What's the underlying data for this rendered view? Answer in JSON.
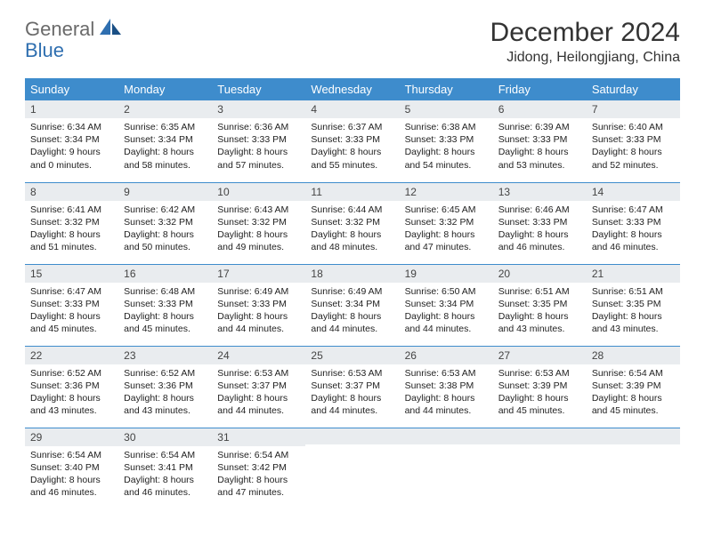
{
  "logo": {
    "part1": "General",
    "part2": "Blue"
  },
  "title": "December 2024",
  "location": "Jidong, Heilongjiang, China",
  "colors": {
    "header_bg": "#3e8ccc",
    "header_text": "#ffffff",
    "daynum_bg": "#e9ecef",
    "border": "#3e8ccc",
    "logo_gray": "#6a6a6a",
    "logo_blue": "#2f6fb0"
  },
  "weekdays": [
    "Sunday",
    "Monday",
    "Tuesday",
    "Wednesday",
    "Thursday",
    "Friday",
    "Saturday"
  ],
  "weeks": [
    [
      {
        "n": "1",
        "sr": "Sunrise: 6:34 AM",
        "ss": "Sunset: 3:34 PM",
        "dl": "Daylight: 9 hours and 0 minutes."
      },
      {
        "n": "2",
        "sr": "Sunrise: 6:35 AM",
        "ss": "Sunset: 3:34 PM",
        "dl": "Daylight: 8 hours and 58 minutes."
      },
      {
        "n": "3",
        "sr": "Sunrise: 6:36 AM",
        "ss": "Sunset: 3:33 PM",
        "dl": "Daylight: 8 hours and 57 minutes."
      },
      {
        "n": "4",
        "sr": "Sunrise: 6:37 AM",
        "ss": "Sunset: 3:33 PM",
        "dl": "Daylight: 8 hours and 55 minutes."
      },
      {
        "n": "5",
        "sr": "Sunrise: 6:38 AM",
        "ss": "Sunset: 3:33 PM",
        "dl": "Daylight: 8 hours and 54 minutes."
      },
      {
        "n": "6",
        "sr": "Sunrise: 6:39 AM",
        "ss": "Sunset: 3:33 PM",
        "dl": "Daylight: 8 hours and 53 minutes."
      },
      {
        "n": "7",
        "sr": "Sunrise: 6:40 AM",
        "ss": "Sunset: 3:33 PM",
        "dl": "Daylight: 8 hours and 52 minutes."
      }
    ],
    [
      {
        "n": "8",
        "sr": "Sunrise: 6:41 AM",
        "ss": "Sunset: 3:32 PM",
        "dl": "Daylight: 8 hours and 51 minutes."
      },
      {
        "n": "9",
        "sr": "Sunrise: 6:42 AM",
        "ss": "Sunset: 3:32 PM",
        "dl": "Daylight: 8 hours and 50 minutes."
      },
      {
        "n": "10",
        "sr": "Sunrise: 6:43 AM",
        "ss": "Sunset: 3:32 PM",
        "dl": "Daylight: 8 hours and 49 minutes."
      },
      {
        "n": "11",
        "sr": "Sunrise: 6:44 AM",
        "ss": "Sunset: 3:32 PM",
        "dl": "Daylight: 8 hours and 48 minutes."
      },
      {
        "n": "12",
        "sr": "Sunrise: 6:45 AM",
        "ss": "Sunset: 3:32 PM",
        "dl": "Daylight: 8 hours and 47 minutes."
      },
      {
        "n": "13",
        "sr": "Sunrise: 6:46 AM",
        "ss": "Sunset: 3:33 PM",
        "dl": "Daylight: 8 hours and 46 minutes."
      },
      {
        "n": "14",
        "sr": "Sunrise: 6:47 AM",
        "ss": "Sunset: 3:33 PM",
        "dl": "Daylight: 8 hours and 46 minutes."
      }
    ],
    [
      {
        "n": "15",
        "sr": "Sunrise: 6:47 AM",
        "ss": "Sunset: 3:33 PM",
        "dl": "Daylight: 8 hours and 45 minutes."
      },
      {
        "n": "16",
        "sr": "Sunrise: 6:48 AM",
        "ss": "Sunset: 3:33 PM",
        "dl": "Daylight: 8 hours and 45 minutes."
      },
      {
        "n": "17",
        "sr": "Sunrise: 6:49 AM",
        "ss": "Sunset: 3:33 PM",
        "dl": "Daylight: 8 hours and 44 minutes."
      },
      {
        "n": "18",
        "sr": "Sunrise: 6:49 AM",
        "ss": "Sunset: 3:34 PM",
        "dl": "Daylight: 8 hours and 44 minutes."
      },
      {
        "n": "19",
        "sr": "Sunrise: 6:50 AM",
        "ss": "Sunset: 3:34 PM",
        "dl": "Daylight: 8 hours and 44 minutes."
      },
      {
        "n": "20",
        "sr": "Sunrise: 6:51 AM",
        "ss": "Sunset: 3:35 PM",
        "dl": "Daylight: 8 hours and 43 minutes."
      },
      {
        "n": "21",
        "sr": "Sunrise: 6:51 AM",
        "ss": "Sunset: 3:35 PM",
        "dl": "Daylight: 8 hours and 43 minutes."
      }
    ],
    [
      {
        "n": "22",
        "sr": "Sunrise: 6:52 AM",
        "ss": "Sunset: 3:36 PM",
        "dl": "Daylight: 8 hours and 43 minutes."
      },
      {
        "n": "23",
        "sr": "Sunrise: 6:52 AM",
        "ss": "Sunset: 3:36 PM",
        "dl": "Daylight: 8 hours and 43 minutes."
      },
      {
        "n": "24",
        "sr": "Sunrise: 6:53 AM",
        "ss": "Sunset: 3:37 PM",
        "dl": "Daylight: 8 hours and 44 minutes."
      },
      {
        "n": "25",
        "sr": "Sunrise: 6:53 AM",
        "ss": "Sunset: 3:37 PM",
        "dl": "Daylight: 8 hours and 44 minutes."
      },
      {
        "n": "26",
        "sr": "Sunrise: 6:53 AM",
        "ss": "Sunset: 3:38 PM",
        "dl": "Daylight: 8 hours and 44 minutes."
      },
      {
        "n": "27",
        "sr": "Sunrise: 6:53 AM",
        "ss": "Sunset: 3:39 PM",
        "dl": "Daylight: 8 hours and 45 minutes."
      },
      {
        "n": "28",
        "sr": "Sunrise: 6:54 AM",
        "ss": "Sunset: 3:39 PM",
        "dl": "Daylight: 8 hours and 45 minutes."
      }
    ],
    [
      {
        "n": "29",
        "sr": "Sunrise: 6:54 AM",
        "ss": "Sunset: 3:40 PM",
        "dl": "Daylight: 8 hours and 46 minutes."
      },
      {
        "n": "30",
        "sr": "Sunrise: 6:54 AM",
        "ss": "Sunset: 3:41 PM",
        "dl": "Daylight: 8 hours and 46 minutes."
      },
      {
        "n": "31",
        "sr": "Sunrise: 6:54 AM",
        "ss": "Sunset: 3:42 PM",
        "dl": "Daylight: 8 hours and 47 minutes."
      },
      {
        "n": "",
        "sr": "",
        "ss": "",
        "dl": ""
      },
      {
        "n": "",
        "sr": "",
        "ss": "",
        "dl": ""
      },
      {
        "n": "",
        "sr": "",
        "ss": "",
        "dl": ""
      },
      {
        "n": "",
        "sr": "",
        "ss": "",
        "dl": ""
      }
    ]
  ]
}
